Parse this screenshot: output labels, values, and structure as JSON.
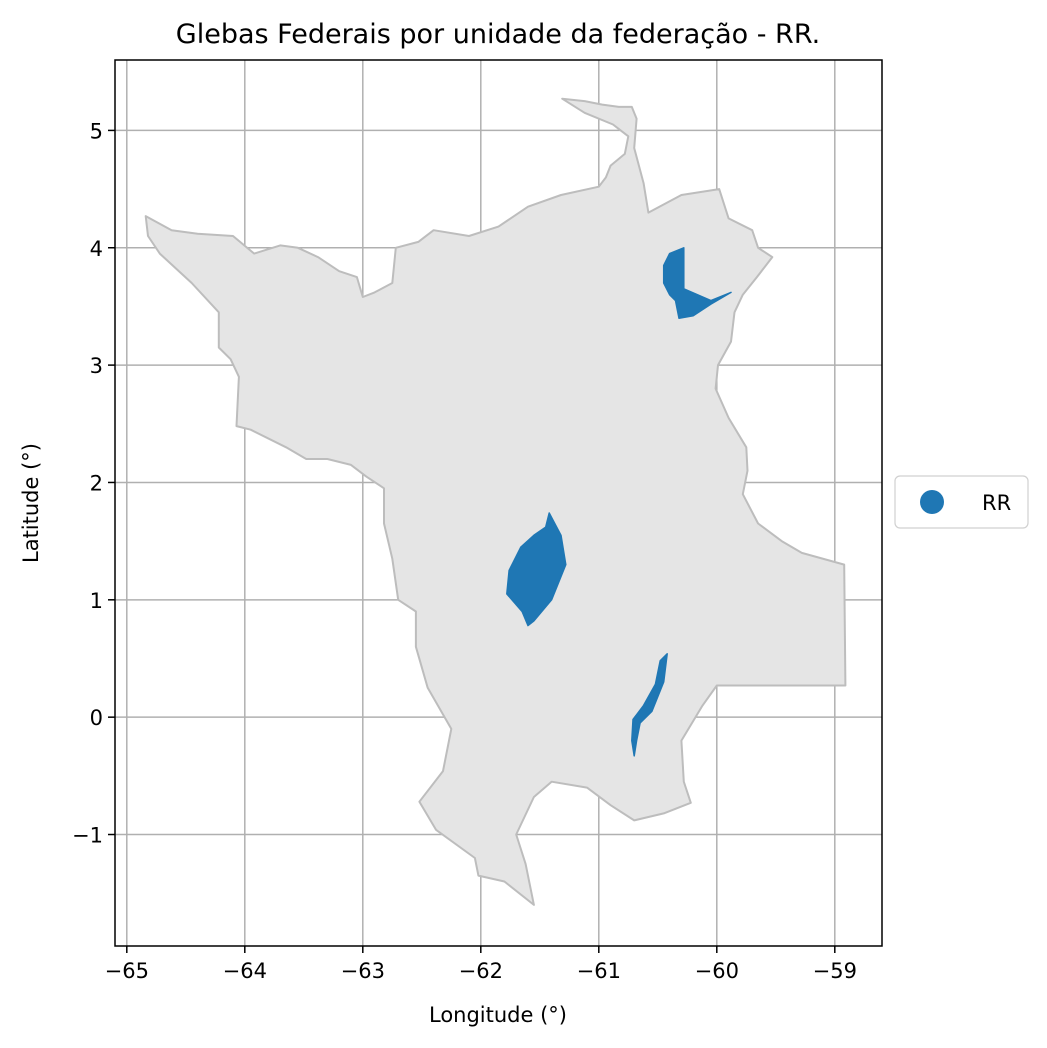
{
  "chart_data": {
    "type": "map",
    "title": "Glebas Federais por unidade da federação - RR.",
    "xlabel": "Longitude (°)",
    "ylabel": "Latitude (°)",
    "xlim": [
      -65.1,
      -58.6
    ],
    "ylim": [
      -1.95,
      5.6
    ],
    "grid": true,
    "x_ticks": [
      -65,
      -64,
      -63,
      -62,
      -61,
      -60,
      -59
    ],
    "y_ticks": [
      -1,
      0,
      1,
      2,
      3,
      4,
      5
    ],
    "x_tick_labels": [
      "−65",
      "−64",
      "−63",
      "−62",
      "−61",
      "−60",
      "−59"
    ],
    "y_tick_labels": [
      "−1",
      "0",
      "1",
      "2",
      "3",
      "4",
      "5"
    ],
    "legend": {
      "placement": "right",
      "entries": [
        {
          "label": "RR",
          "color": "#1f77b4",
          "marker": "circle"
        }
      ]
    },
    "state_outline": {
      "fill": "#e5e5e5",
      "stroke": "#bdbdbd",
      "coords": [
        [
          -61.31,
          5.27
        ],
        [
          -61.12,
          5.25
        ],
        [
          -60.97,
          5.22
        ],
        [
          -60.83,
          5.2
        ],
        [
          -60.72,
          5.2
        ],
        [
          -60.68,
          5.1
        ],
        [
          -60.7,
          4.85
        ],
        [
          -60.62,
          4.55
        ],
        [
          -60.58,
          4.3
        ],
        [
          -60.3,
          4.45
        ],
        [
          -59.98,
          4.5
        ],
        [
          -59.9,
          4.25
        ],
        [
          -59.7,
          4.15
        ],
        [
          -59.65,
          4.0
        ],
        [
          -59.53,
          3.92
        ],
        [
          -59.66,
          3.75
        ],
        [
          -59.78,
          3.6
        ],
        [
          -59.85,
          3.45
        ],
        [
          -59.88,
          3.2
        ],
        [
          -59.99,
          3.0
        ],
        [
          -60.01,
          2.8
        ],
        [
          -59.9,
          2.55
        ],
        [
          -59.75,
          2.3
        ],
        [
          -59.74,
          2.1
        ],
        [
          -59.78,
          1.9
        ],
        [
          -59.65,
          1.65
        ],
        [
          -59.45,
          1.5
        ],
        [
          -59.28,
          1.4
        ],
        [
          -58.92,
          1.3
        ],
        [
          -58.91,
          0.27
        ],
        [
          -60.0,
          0.27
        ],
        [
          -60.12,
          0.1
        ],
        [
          -60.3,
          -0.2
        ],
        [
          -60.28,
          -0.55
        ],
        [
          -60.22,
          -0.73
        ],
        [
          -60.45,
          -0.82
        ],
        [
          -60.7,
          -0.88
        ],
        [
          -60.9,
          -0.75
        ],
        [
          -61.1,
          -0.6
        ],
        [
          -61.4,
          -0.55
        ],
        [
          -61.55,
          -0.68
        ],
        [
          -61.7,
          -1.0
        ],
        [
          -61.62,
          -1.25
        ],
        [
          -61.55,
          -1.6
        ],
        [
          -61.8,
          -1.4
        ],
        [
          -62.02,
          -1.35
        ],
        [
          -62.05,
          -1.2
        ],
        [
          -62.38,
          -0.96
        ],
        [
          -62.52,
          -0.72
        ],
        [
          -62.32,
          -0.46
        ],
        [
          -62.25,
          -0.1
        ],
        [
          -62.45,
          0.25
        ],
        [
          -62.55,
          0.6
        ],
        [
          -62.55,
          0.9
        ],
        [
          -62.7,
          1.0
        ],
        [
          -62.75,
          1.35
        ],
        [
          -62.82,
          1.65
        ],
        [
          -62.82,
          1.95
        ],
        [
          -62.97,
          2.05
        ],
        [
          -63.1,
          2.15
        ],
        [
          -63.3,
          2.2
        ],
        [
          -63.48,
          2.2
        ],
        [
          -63.65,
          2.3
        ],
        [
          -63.95,
          2.45
        ],
        [
          -64.07,
          2.48
        ],
        [
          -64.05,
          2.9
        ],
        [
          -64.12,
          3.05
        ],
        [
          -64.22,
          3.15
        ],
        [
          -64.22,
          3.45
        ],
        [
          -64.45,
          3.7
        ],
        [
          -64.72,
          3.95
        ],
        [
          -64.82,
          4.1
        ],
        [
          -64.84,
          4.27
        ],
        [
          -64.62,
          4.15
        ],
        [
          -64.4,
          4.12
        ],
        [
          -64.1,
          4.1
        ],
        [
          -63.92,
          3.95
        ],
        [
          -63.7,
          4.02
        ],
        [
          -63.55,
          4.0
        ],
        [
          -63.38,
          3.92
        ],
        [
          -63.2,
          3.8
        ],
        [
          -63.05,
          3.75
        ],
        [
          -63.0,
          3.58
        ],
        [
          -62.9,
          3.62
        ],
        [
          -62.75,
          3.7
        ],
        [
          -62.72,
          4.0
        ],
        [
          -62.53,
          4.05
        ],
        [
          -62.4,
          4.15
        ],
        [
          -62.1,
          4.1
        ],
        [
          -61.85,
          4.18
        ],
        [
          -61.6,
          4.35
        ],
        [
          -61.32,
          4.45
        ],
        [
          -61.0,
          4.52
        ],
        [
          -60.94,
          4.6
        ],
        [
          -60.9,
          4.7
        ],
        [
          -60.78,
          4.8
        ],
        [
          -60.75,
          4.95
        ],
        [
          -60.88,
          5.05
        ],
        [
          -61.12,
          5.15
        ],
        [
          -61.31,
          5.27
        ]
      ]
    },
    "series": [
      {
        "name": "RR",
        "color": "#1f77b4",
        "polygons": [
          [
            [
              -60.28,
              4.0
            ],
            [
              -60.28,
              3.65
            ],
            [
              -60.05,
              3.55
            ],
            [
              -59.88,
              3.62
            ],
            [
              -60.05,
              3.52
            ],
            [
              -60.2,
              3.42
            ],
            [
              -60.32,
              3.4
            ],
            [
              -60.35,
              3.55
            ],
            [
              -60.4,
              3.6
            ],
            [
              -60.45,
              3.7
            ],
            [
              -60.45,
              3.85
            ],
            [
              -60.4,
              3.95
            ],
            [
              -60.28,
              4.0
            ]
          ],
          [
            [
              -61.42,
              1.74
            ],
            [
              -61.32,
              1.55
            ],
            [
              -61.28,
              1.3
            ],
            [
              -61.4,
              1.0
            ],
            [
              -61.55,
              0.82
            ],
            [
              -61.6,
              0.78
            ],
            [
              -61.65,
              0.9
            ],
            [
              -61.78,
              1.05
            ],
            [
              -61.76,
              1.25
            ],
            [
              -61.66,
              1.45
            ],
            [
              -61.55,
              1.55
            ],
            [
              -61.45,
              1.62
            ],
            [
              -61.42,
              1.74
            ]
          ],
          [
            [
              -60.42,
              0.54
            ],
            [
              -60.45,
              0.3
            ],
            [
              -60.55,
              0.05
            ],
            [
              -60.65,
              -0.05
            ],
            [
              -60.68,
              -0.2
            ],
            [
              -60.7,
              -0.33
            ],
            [
              -60.72,
              -0.2
            ],
            [
              -60.71,
              -0.02
            ],
            [
              -60.62,
              0.1
            ],
            [
              -60.52,
              0.28
            ],
            [
              -60.48,
              0.48
            ],
            [
              -60.42,
              0.54
            ]
          ]
        ]
      }
    ]
  }
}
